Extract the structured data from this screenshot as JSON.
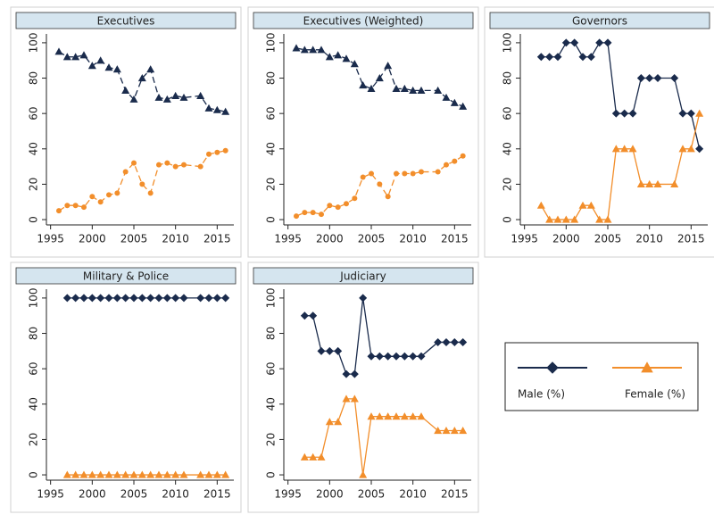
{
  "chart_data": [
    {
      "type": "line",
      "title": "Executives",
      "line_style": "dashed",
      "x": [
        1996,
        1997,
        1998,
        1999,
        2000,
        2001,
        2002,
        2003,
        2004,
        2005,
        2006,
        2007,
        2008,
        2009,
        2010,
        2011,
        2013,
        2014,
        2015,
        2016
      ],
      "series": [
        {
          "color": "#1a2b4c",
          "marker": "triangle",
          "values": [
            95,
            92,
            92,
            93,
            87,
            90,
            86,
            85,
            73,
            68,
            80,
            85,
            69,
            68,
            70,
            69,
            70,
            63,
            62,
            61
          ]
        },
        {
          "color": "#f28e2b",
          "marker": "circle",
          "values": [
            5,
            8,
            8,
            7,
            13,
            10,
            14,
            15,
            27,
            32,
            20,
            15,
            31,
            32,
            30,
            31,
            30,
            37,
            38,
            39
          ]
        }
      ],
      "xlim": [
        1994.5,
        2017
      ],
      "xticks": [
        1995,
        2000,
        2005,
        2010,
        2015
      ],
      "ylim": [
        -3,
        105
      ],
      "yticks": [
        0,
        20,
        40,
        60,
        80,
        100
      ]
    },
    {
      "type": "line",
      "title": "Executives (Weighted)",
      "line_style": "dashed",
      "x": [
        1996,
        1997,
        1998,
        1999,
        2000,
        2001,
        2002,
        2003,
        2004,
        2005,
        2006,
        2007,
        2008,
        2009,
        2010,
        2011,
        2013,
        2014,
        2015,
        2016
      ],
      "series": [
        {
          "color": "#1a2b4c",
          "marker": "triangle",
          "values": [
            97,
            96,
            96,
            96,
            92,
            93,
            91,
            88,
            76,
            74,
            80,
            87,
            74,
            74,
            73,
            73,
            73,
            69,
            66,
            64
          ]
        },
        {
          "color": "#f28e2b",
          "marker": "circle",
          "values": [
            2,
            4,
            4,
            3,
            8,
            7,
            9,
            12,
            24,
            26,
            20,
            13,
            26,
            26,
            26,
            27,
            27,
            31,
            33,
            36
          ]
        }
      ],
      "xlim": [
        1994.5,
        2017
      ],
      "xticks": [
        1995,
        2000,
        2005,
        2010,
        2015
      ],
      "ylim": [
        -3,
        105
      ],
      "yticks": [
        0,
        20,
        40,
        60,
        80,
        100
      ]
    },
    {
      "type": "line",
      "title": "Governors",
      "line_style": "solid",
      "x": [
        1997,
        1998,
        1999,
        2000,
        2001,
        2002,
        2003,
        2004,
        2005,
        2006,
        2007,
        2008,
        2009,
        2010,
        2011,
        2013,
        2014,
        2015,
        2016
      ],
      "series": [
        {
          "color": "#1a2b4c",
          "marker": "diamond",
          "values": [
            92,
            92,
            92,
            100,
            100,
            92,
            92,
            100,
            100,
            60,
            60,
            60,
            80,
            80,
            80,
            80,
            60,
            60,
            40
          ]
        },
        {
          "color": "#f28e2b",
          "marker": "triangle",
          "values": [
            8,
            0,
            0,
            0,
            0,
            8,
            8,
            0,
            0,
            40,
            40,
            40,
            20,
            20,
            20,
            20,
            40,
            40,
            60
          ]
        }
      ],
      "xlim": [
        1994.5,
        2017
      ],
      "xticks": [
        1995,
        2000,
        2005,
        2010,
        2015
      ],
      "ylim": [
        -3,
        105
      ],
      "yticks": [
        0,
        20,
        40,
        60,
        80,
        100
      ]
    },
    {
      "type": "line",
      "title": "Military & Police",
      "line_style": "solid",
      "x": [
        1997,
        1998,
        1999,
        2000,
        2001,
        2002,
        2003,
        2004,
        2005,
        2006,
        2007,
        2008,
        2009,
        2010,
        2011,
        2013,
        2014,
        2015,
        2016
      ],
      "series": [
        {
          "color": "#1a2b4c",
          "marker": "diamond",
          "values": [
            100,
            100,
            100,
            100,
            100,
            100,
            100,
            100,
            100,
            100,
            100,
            100,
            100,
            100,
            100,
            100,
            100,
            100,
            100
          ]
        },
        {
          "color": "#f28e2b",
          "marker": "triangle",
          "values": [
            0,
            0,
            0,
            0,
            0,
            0,
            0,
            0,
            0,
            0,
            0,
            0,
            0,
            0,
            0,
            0,
            0,
            0,
            0
          ]
        }
      ],
      "xlim": [
        1994.5,
        2017
      ],
      "xticks": [
        1995,
        2000,
        2005,
        2010,
        2015
      ],
      "ylim": [
        -3,
        105
      ],
      "yticks": [
        0,
        20,
        40,
        60,
        80,
        100
      ]
    },
    {
      "type": "line",
      "title": "Judiciary",
      "line_style": "solid",
      "x": [
        1997,
        1998,
        1999,
        2000,
        2001,
        2002,
        2003,
        2004,
        2005,
        2006,
        2007,
        2008,
        2009,
        2010,
        2011,
        2013,
        2014,
        2015,
        2016
      ],
      "series": [
        {
          "color": "#1a2b4c",
          "marker": "diamond",
          "values": [
            90,
            90,
            70,
            70,
            70,
            57,
            57,
            100,
            67,
            67,
            67,
            67,
            67,
            67,
            67,
            75,
            75,
            75,
            75
          ]
        },
        {
          "color": "#f28e2b",
          "marker": "triangle",
          "values": [
            10,
            10,
            10,
            30,
            30,
            43,
            43,
            0,
            33,
            33,
            33,
            33,
            33,
            33,
            33,
            25,
            25,
            25,
            25
          ]
        }
      ],
      "xlim": [
        1994.5,
        2017
      ],
      "xticks": [
        1995,
        2000,
        2005,
        2010,
        2015
      ],
      "ylim": [
        -3,
        105
      ],
      "yticks": [
        0,
        20,
        40,
        60,
        80,
        100
      ]
    }
  ],
  "legend": [
    {
      "name": "Male (%)",
      "color": "#1a2b4c",
      "marker": "diamond"
    },
    {
      "name": "Female (%)",
      "color": "#f28e2b",
      "marker": "triangle"
    }
  ]
}
